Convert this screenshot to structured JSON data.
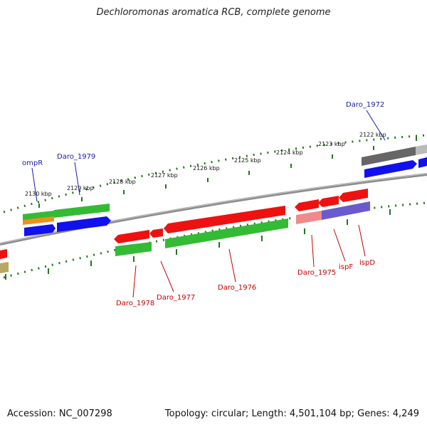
{
  "title": "Dechloromonas aromatica RCB, complete genome",
  "footer": {
    "accession": "Accession: NC_007298",
    "summary": "Topology: circular; Length: 4,501,104 bp; Genes: 4,249"
  },
  "colors": {
    "backbone": "#8c8c8c",
    "ruler": "#1c7a1c",
    "label_forward": "#1a1aa8",
    "label_reverse": "#c80000",
    "gene_red": "#ee1111",
    "gene_green": "#33bb33",
    "gene_blue": "#1111ee",
    "gene_orange": "#f0901a",
    "gene_gray": "#666666",
    "gene_lightgray": "#bbbbbb",
    "gene_pink": "#f08a8a",
    "gene_purple": "#6a5acd",
    "gene_olive": "#b8a860"
  },
  "tick_labels": [
    "2122 kbp",
    "2123 kbp",
    "2124 kbp",
    "2125 kbp",
    "2126 kbp",
    "2127 kbp",
    "2128 kbp",
    "2129 kbp",
    "2130 kbp"
  ],
  "gene_labels_top": [
    "ompR",
    "Daro_1979",
    "Daro_1972"
  ],
  "gene_labels_bottom": [
    "Daro_1978",
    "Daro_1977",
    "Daro_1976",
    "Daro_1975",
    "ispF",
    "ispD"
  ]
}
